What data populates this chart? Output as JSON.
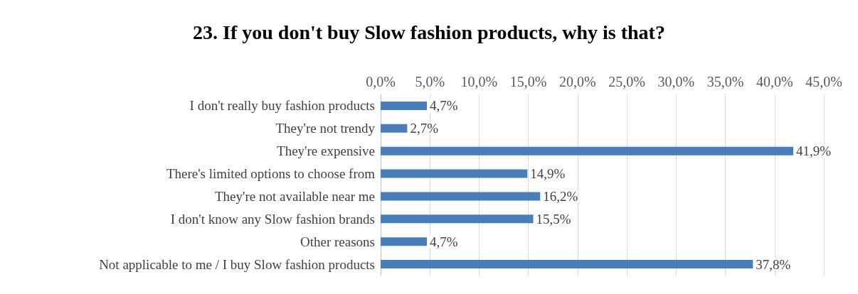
{
  "chart_data": {
    "type": "bar",
    "orientation": "horizontal",
    "title": "23. If you don't buy Slow fashion products, why is that?",
    "categories": [
      "I don't really buy fashion products",
      "They're not trendy",
      "They're expensive",
      "There's limited options to choose from",
      "They're not available near me",
      "I don't know any Slow fashion brands",
      "Other reasons",
      "Not applicable to me / I buy Slow fashion products"
    ],
    "values": [
      4.7,
      2.7,
      41.9,
      14.9,
      16.2,
      15.5,
      4.7,
      37.8
    ],
    "value_labels": [
      "4,7%",
      "2,7%",
      "41,9%",
      "14,9%",
      "16,2%",
      "15,5%",
      "4,7%",
      "37,8%"
    ],
    "color": "#4a7ebb",
    "xlim": [
      0,
      45
    ],
    "xticks": [
      {
        "value": 0,
        "label": "0,0%"
      },
      {
        "value": 5,
        "label": "5,0%"
      },
      {
        "value": 10,
        "label": "10,0%"
      },
      {
        "value": 15,
        "label": "15,0%"
      },
      {
        "value": 20,
        "label": "20,0%"
      },
      {
        "value": 25,
        "label": "25,0%"
      },
      {
        "value": 30,
        "label": "30,0%"
      },
      {
        "value": 35,
        "label": "35,0%"
      },
      {
        "value": 40,
        "label": "40,0%"
      },
      {
        "value": 45,
        "label": "45,0%"
      }
    ],
    "grid": "x"
  }
}
